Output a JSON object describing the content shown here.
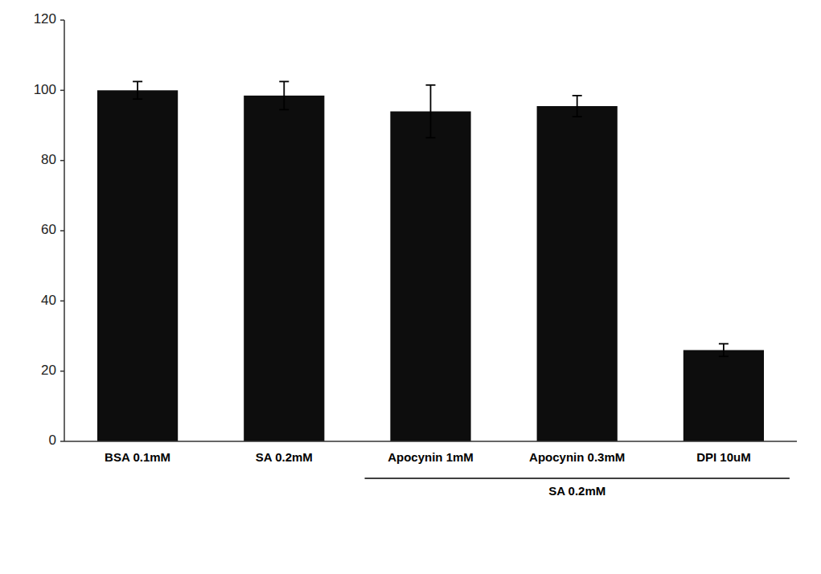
{
  "chart_data": {
    "type": "bar",
    "categories": [
      "BSA 0.1mM",
      "SA 0.2mM",
      "Apocynin 1mM",
      "Apocynin 0.3mM",
      "DPI 10uM"
    ],
    "values": [
      100.0,
      98.5,
      94.0,
      95.5,
      26.0
    ],
    "errors": [
      2.5,
      4.0,
      7.5,
      3.0,
      1.8
    ],
    "color": "#0d0d0d",
    "ylim": [
      0,
      120
    ],
    "yticks": [
      0,
      20,
      40,
      60,
      80,
      100,
      120
    ],
    "grid": false,
    "annotations": [
      {
        "text": "SA 0.2mM",
        "categories": [
          "Apocynin 1mM",
          "Apocynin 0.3mM",
          "DPI 10uM"
        ]
      }
    ]
  }
}
